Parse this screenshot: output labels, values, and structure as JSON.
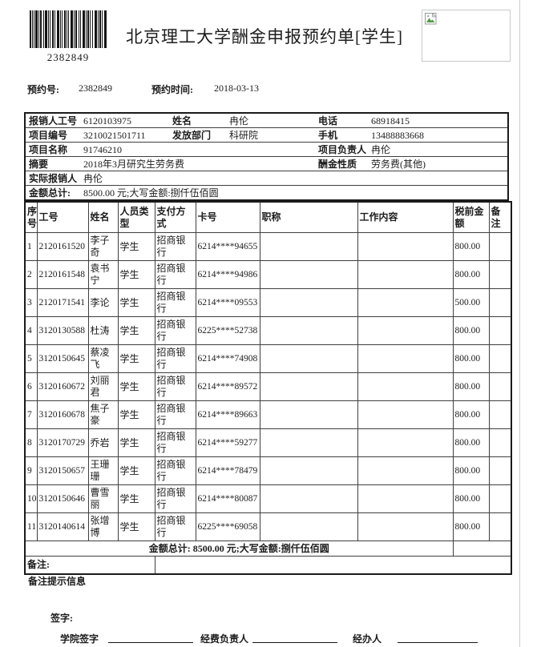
{
  "colors": {
    "ink": "#1c1c1c",
    "table_border": "#3f3f3f",
    "outer_border": "#1a1a1a",
    "page_edge_line": "#cccccc"
  },
  "icons": {
    "top_right_box": "broken-image-icon",
    "top_left": "barcode"
  },
  "header": {
    "barcode_number": "2382849",
    "title": "北京理工大学酬金申报预约单[学生]"
  },
  "reservation": {
    "no_label": "预约号:",
    "no_value": "2382849",
    "time_label": "预约时间:",
    "time_value": "2018-03-13"
  },
  "info": {
    "r1": {
      "l1": "报销人工号",
      "v1": "6120103975",
      "l2": "姓名",
      "v2": "冉伦",
      "l3": "电话",
      "v3": "68918415"
    },
    "r2": {
      "l1": "项目编号",
      "v1": "3210021501711",
      "l2": "发放部门",
      "v2": "科研院",
      "l3": "手机",
      "v3": "13488883668"
    },
    "r3": {
      "l1": "项目名称",
      "v1": "91746210",
      "l2": "项目负责人",
      "v2": "冉伦"
    },
    "r4": {
      "l1": "摘要",
      "v1": "2018年3月研究生劳务费",
      "l2": "酬金性质",
      "v2": "劳务费(其他)"
    },
    "r5": {
      "l1": "实际报销人",
      "v1": "冉伦"
    },
    "r6": {
      "l1": "金额总计:",
      "v1": "8500.00 元;大写金额:捌仟伍佰圆"
    }
  },
  "table": {
    "headers": [
      "序号",
      "工号",
      "姓名",
      "人员类型",
      "支付方式",
      "卡号",
      "职称",
      "工作内容",
      "税前金额",
      "备注"
    ],
    "header_keys": [
      "index",
      "employee-id",
      "name",
      "person-type",
      "pay-method",
      "card-no",
      "job-title",
      "work-content",
      "pretax-amount",
      "remark"
    ],
    "rows": [
      [
        "1",
        "2120161520",
        "李子奇",
        "学生",
        "招商银行",
        "6214****94655",
        "",
        "",
        "800.00",
        ""
      ],
      [
        "2",
        "2120161548",
        "袁书宁",
        "学生",
        "招商银行",
        "6214****94986",
        "",
        "",
        "800.00",
        ""
      ],
      [
        "3",
        "2120171541",
        "李论",
        "学生",
        "招商银行",
        "6214****09553",
        "",
        "",
        "500.00",
        ""
      ],
      [
        "4",
        "3120130588",
        "杜涛",
        "学生",
        "招商银行",
        "6225****52738",
        "",
        "",
        "800.00",
        ""
      ],
      [
        "5",
        "3120150645",
        "蔡凌飞",
        "学生",
        "招商银行",
        "6214****74908",
        "",
        "",
        "800.00",
        ""
      ],
      [
        "6",
        "3120160672",
        "刘丽君",
        "学生",
        "招商银行",
        "6214****89572",
        "",
        "",
        "800.00",
        ""
      ],
      [
        "7",
        "3120160678",
        "焦子豪",
        "学生",
        "招商银行",
        "6214****89663",
        "",
        "",
        "800.00",
        ""
      ],
      [
        "8",
        "3120170729",
        "乔岩",
        "学生",
        "招商银行",
        "6214****59277",
        "",
        "",
        "800.00",
        ""
      ],
      [
        "9",
        "3120150657",
        "王珊珊",
        "学生",
        "招商银行",
        "6214****78479",
        "",
        "",
        "800.00",
        ""
      ],
      [
        "10",
        "3120150646",
        "曹雪丽",
        "学生",
        "招商银行",
        "6214****80087",
        "",
        "",
        "800.00",
        ""
      ],
      [
        "11",
        "3120140614",
        "张增博",
        "学生",
        "招商银行",
        "6225****69058",
        "",
        "",
        "800.00",
        ""
      ]
    ],
    "total_text": "金额总计: 8500.00 元;大写金额:捌仟伍佰圆",
    "remark_label": "备注:",
    "remark_value": ""
  },
  "footer": {
    "note_hint": "备注提示信息",
    "sign_label": "签字:",
    "signer1": "学院签字",
    "signer2": "经费负责人",
    "signer3": "经办人"
  }
}
